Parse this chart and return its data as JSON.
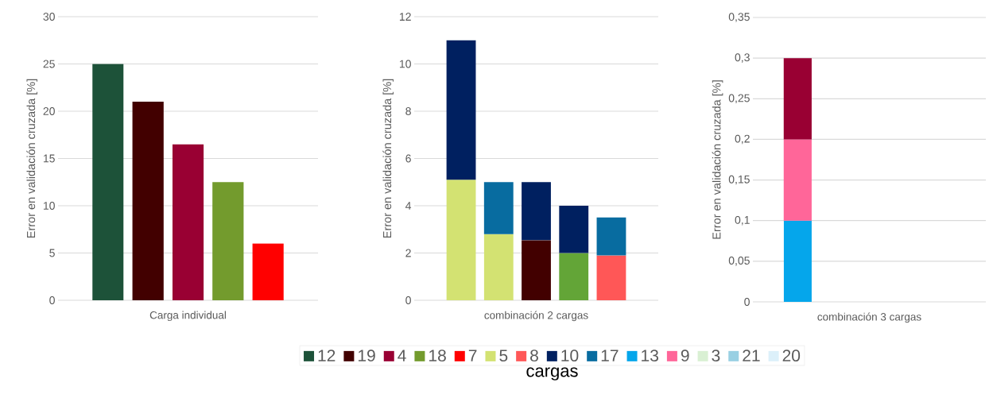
{
  "chart_data": [
    {
      "type": "bar",
      "categories": [
        null,
        null,
        null,
        null,
        null
      ],
      "xlabel": "Carga individual",
      "ylabel": "Error en validación cruzada [%]",
      "ylim": [
        0,
        30
      ],
      "yticks": [
        0,
        5,
        10,
        15,
        20,
        25,
        30
      ],
      "grid": "y",
      "legend": "bottom",
      "series": [
        {
          "name": "12",
          "color": "#1d5239",
          "values": [
            25,
            null,
            null,
            null,
            null
          ]
        },
        {
          "name": "19",
          "color": "#420000",
          "values": [
            null,
            21,
            null,
            null,
            null
          ]
        },
        {
          "name": "4",
          "color": "#990033",
          "values": [
            null,
            null,
            16.5,
            null,
            null
          ]
        },
        {
          "name": "18",
          "color": "#739b2d",
          "values": [
            null,
            null,
            null,
            12.5,
            null
          ]
        },
        {
          "name": "7",
          "color": "#ff0000",
          "values": [
            null,
            null,
            null,
            null,
            6
          ]
        }
      ]
    },
    {
      "type": "bar",
      "categories": [
        null,
        null,
        null,
        null,
        null
      ],
      "xlabel": "combinación 2 cargas",
      "ylabel": "Error en validación cruzada [%]",
      "ylim": [
        0,
        12
      ],
      "yticks": [
        0,
        2,
        4,
        6,
        8,
        10,
        12
      ],
      "grid": "y",
      "stacked": true,
      "legend": "bottom",
      "legend_title": "cargas",
      "series": [
        {
          "name": "5",
          "color": "#d3e272",
          "values": [
            5.1,
            2.8,
            null,
            null,
            null
          ]
        },
        {
          "name": "19",
          "color": "#420000",
          "values": [
            null,
            null,
            2.55,
            null,
            null
          ]
        },
        {
          "name": "18",
          "color": "#63a537",
          "values": [
            null,
            null,
            null,
            2,
            null
          ]
        },
        {
          "name": "8",
          "color": "#ff5757",
          "values": [
            null,
            null,
            null,
            null,
            1.9
          ]
        },
        {
          "name": "10",
          "color": "#002060",
          "values": [
            5.9,
            null,
            2.45,
            2,
            null
          ]
        },
        {
          "name": "17",
          "color": "#086ca0",
          "values": [
            null,
            2.2,
            null,
            null,
            1.6
          ]
        }
      ]
    },
    {
      "type": "bar",
      "categories": [
        null,
        null,
        null,
        null,
        null
      ],
      "xlabel": "combinación 3 cargas",
      "ylabel": "Error en validación cruzada [%]",
      "ylim": [
        0,
        0.35
      ],
      "grid": "y",
      "stacked": true,
      "legend": "bottom",
      "yticks": [
        0,
        {
          "value": 0.05,
          "label": "0,05"
        },
        {
          "value": 0.1,
          "label": "0,1"
        },
        {
          "value": 0.15,
          "label": "0,15"
        },
        {
          "value": 0.2,
          "label": "0,2"
        },
        {
          "value": 0.25,
          "label": "0,25"
        },
        {
          "value": 0.3,
          "label": "0,3"
        },
        {
          "value": 0.35,
          "label": "0,35"
        }
      ],
      "series": [
        {
          "name": "13",
          "color": "#05a6eb",
          "values": [
            0.1,
            null,
            null,
            null,
            null
          ]
        },
        {
          "name": "9",
          "color": "#ff6699",
          "values": [
            0.1,
            null,
            null,
            null,
            null
          ]
        },
        {
          "name": "4",
          "color": "#990033",
          "values": [
            0.1,
            null,
            null,
            null,
            null
          ]
        },
        {
          "name": "3",
          "color": "#d9f0d3",
          "values": [
            null,
            null,
            null,
            null,
            null
          ]
        },
        {
          "name": "21",
          "color": "#99d0e3",
          "values": [
            null,
            null,
            null,
            null,
            null
          ]
        },
        {
          "name": "20",
          "color": "#dcf0fa",
          "values": [
            null,
            null,
            null,
            null,
            null
          ]
        }
      ]
    }
  ]
}
